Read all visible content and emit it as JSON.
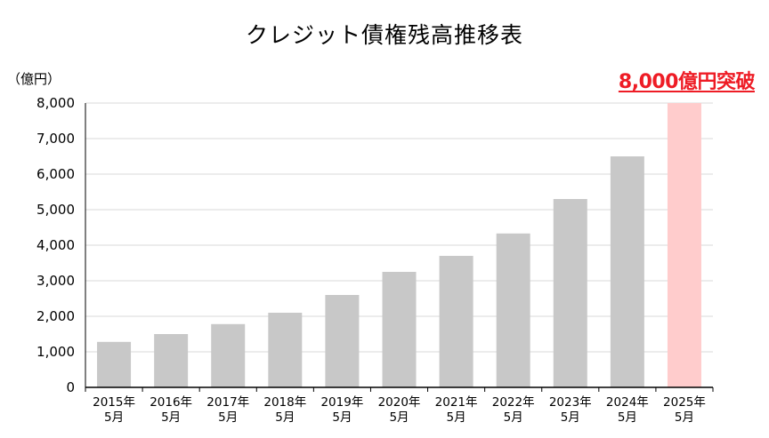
{
  "chart_data": {
    "type": "bar",
    "title": "クレジット債権残高推移表",
    "ylabel": "（億円）",
    "ylim": [
      0,
      8000
    ],
    "yticks": [
      "0",
      "1,000",
      "2,000",
      "3,000",
      "4,000",
      "5,000",
      "6,000",
      "7,000",
      "8,000"
    ],
    "categories": [
      [
        "2015年",
        "5月"
      ],
      [
        "2016年",
        "5月"
      ],
      [
        "2017年",
        "5月"
      ],
      [
        "2018年",
        "5月"
      ],
      [
        "2019年",
        "5月"
      ],
      [
        "2020年",
        "5月"
      ],
      [
        "2021年",
        "5月"
      ],
      [
        "2022年",
        "5月"
      ],
      [
        "2023年",
        "5月"
      ],
      [
        "2024年",
        "5月"
      ],
      [
        "2025年",
        "5月"
      ]
    ],
    "values": [
      1280,
      1500,
      1780,
      2100,
      2600,
      3250,
      3700,
      4330,
      5300,
      6500,
      8000
    ],
    "annotation": "8,000億円突破",
    "grid": true,
    "colors": {
      "bar": "#c8c8c8",
      "highlight_bar": "#ffcccc",
      "highlight_text": "#ee1c25",
      "grid": "#d9d9d9"
    }
  }
}
